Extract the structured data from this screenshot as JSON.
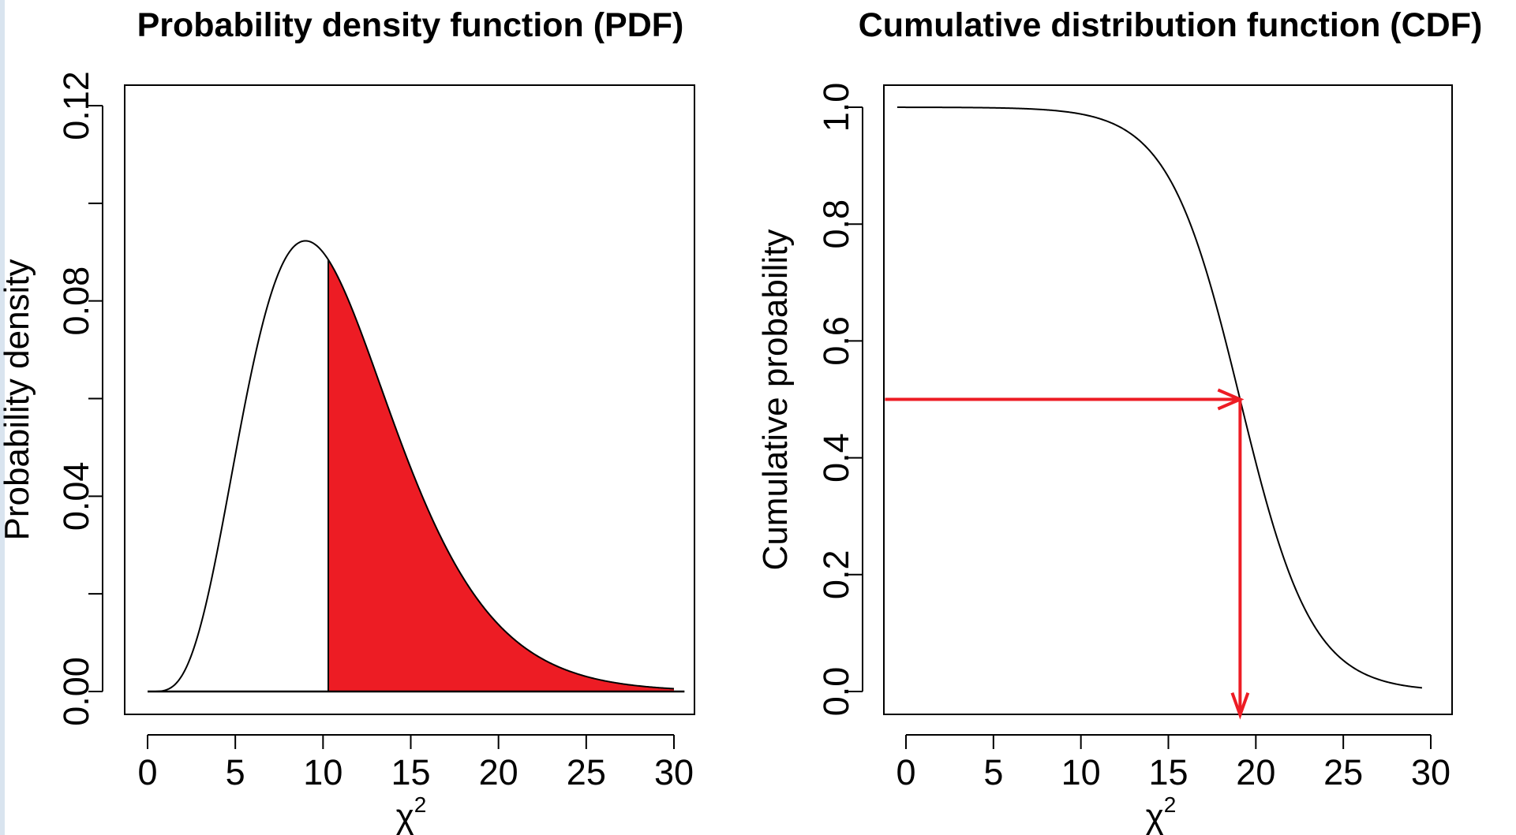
{
  "colors": {
    "highlight": "#ed1c24",
    "line": "#000000",
    "left_edge": "#d9e4ef"
  },
  "chart_data": [
    {
      "type": "area",
      "title": "Probability density function (PDF)",
      "xlabel": "χ",
      "xlabel_superscript": "2",
      "ylabel": "Probability density",
      "xlim": [
        0,
        30
      ],
      "ylim": [
        0,
        0.12
      ],
      "x_ticks": [
        0,
        5,
        10,
        15,
        20,
        25,
        30
      ],
      "x_tick_labels": [
        "0",
        "5",
        "10",
        "15",
        "20",
        "25",
        "30"
      ],
      "y_ticks": [
        0,
        0.02,
        0.04,
        0.06,
        0.08,
        0.1,
        0.12
      ],
      "y_tick_labels": [
        "0.00",
        "",
        "0.04",
        "",
        "0.08",
        "",
        "0.12"
      ],
      "curve": {
        "distribution": "chi-square",
        "df": 11,
        "x_range": [
          0,
          30
        ]
      },
      "shaded_region": {
        "from": 10.3,
        "to": 30,
        "color": "#ed1c24"
      },
      "cutoff_line_x": 10.3
    },
    {
      "type": "line",
      "title": "Cumulative distribution function (CDF)",
      "xlabel": "χ",
      "xlabel_superscript": "2",
      "ylabel": "Cumulative probability",
      "xlim": [
        0,
        30
      ],
      "ylim": [
        0,
        1
      ],
      "x_ticks": [
        0,
        5,
        10,
        15,
        20,
        25,
        30
      ],
      "x_tick_labels": [
        "0",
        "5",
        "10",
        "15",
        "20",
        "25",
        "30"
      ],
      "y_ticks": [
        0,
        0.2,
        0.4,
        0.6,
        0.8,
        1.0
      ],
      "y_tick_labels": [
        "0.0",
        "0.2",
        "0.4",
        "0.6",
        "0.8",
        "1.0"
      ],
      "curve": {
        "shape": "decreasing sigmoid",
        "x_range": [
          -0.5,
          29.5
        ],
        "midpoint_x": 19.1,
        "upper_value": 1.0,
        "lower_value": 0.0
      },
      "arrow_horizontal": {
        "y": 0.5,
        "from_x": -1.2,
        "to_x": 19.1
      },
      "arrow_vertical": {
        "x": 19.1,
        "from_y": 0.5,
        "to_y": -0.04
      }
    }
  ]
}
